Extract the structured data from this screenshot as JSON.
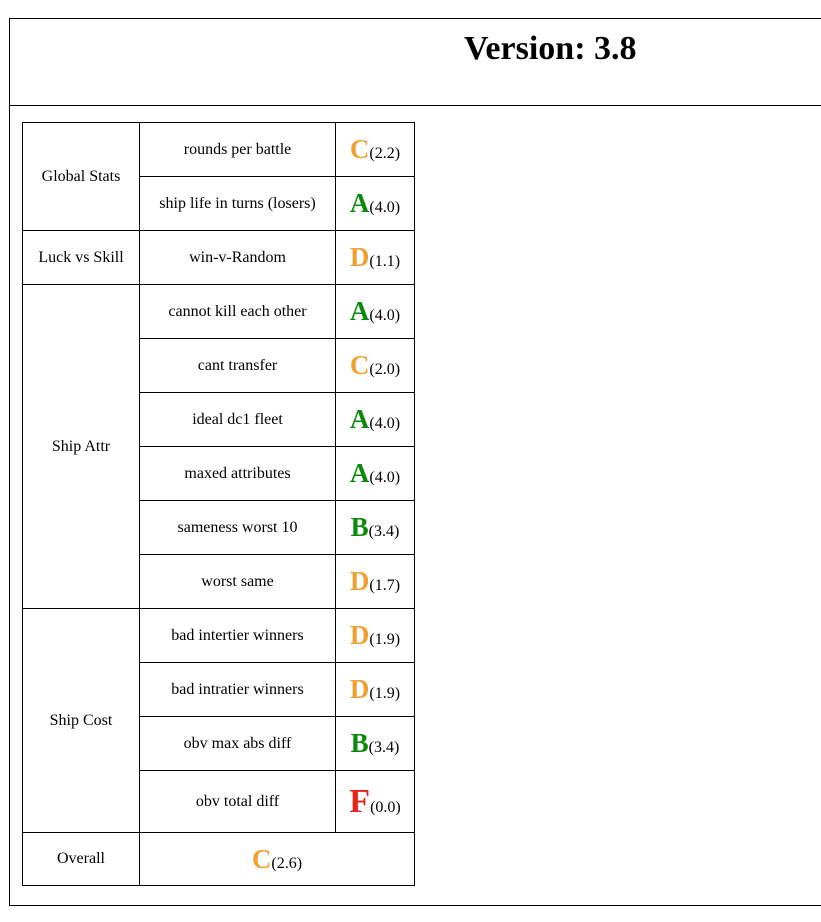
{
  "header": {
    "version_label": "Version: 3.8"
  },
  "colors": {
    "orange": "#f0a030",
    "green": "#0a8a0a",
    "red": "#e8221c"
  },
  "rows": [
    {
      "metric": "rounds per battle",
      "letter": "C",
      "score": "(2.2)",
      "color": "orange"
    },
    {
      "metric": "ship life in turns (losers)",
      "letter": "A",
      "score": "(4.0)",
      "color": "green"
    },
    {
      "metric": "win-v-Random",
      "letter": "D",
      "score": "(1.1)",
      "color": "orange"
    },
    {
      "metric": "cannot kill each other",
      "letter": "A",
      "score": "(4.0)",
      "color": "green"
    },
    {
      "metric": "cant transfer",
      "letter": "C",
      "score": "(2.0)",
      "color": "orange"
    },
    {
      "metric": "ideal dc1 fleet",
      "letter": "A",
      "score": "(4.0)",
      "color": "green"
    },
    {
      "metric": "maxed attributes",
      "letter": "A",
      "score": "(4.0)",
      "color": "green"
    },
    {
      "metric": "sameness worst 10",
      "letter": "B",
      "score": "(3.4)",
      "color": "green"
    },
    {
      "metric": "worst same",
      "letter": "D",
      "score": "(1.7)",
      "color": "orange"
    },
    {
      "metric": "bad intertier winners",
      "letter": "D",
      "score": "(1.9)",
      "color": "orange"
    },
    {
      "metric": "bad intratier winners",
      "letter": "D",
      "score": "(1.9)",
      "color": "orange"
    },
    {
      "metric": "obv max abs diff",
      "letter": "B",
      "score": "(3.4)",
      "color": "green"
    },
    {
      "metric": "obv total diff",
      "letter": "F",
      "score": "(0.0)",
      "color": "red"
    }
  ],
  "categories": [
    "Global Stats",
    "Luck vs Skill",
    "Ship Attr",
    "Ship Cost"
  ],
  "overall": {
    "label": "Overall",
    "letter": "C",
    "score": "(2.6)",
    "color": "orange"
  }
}
